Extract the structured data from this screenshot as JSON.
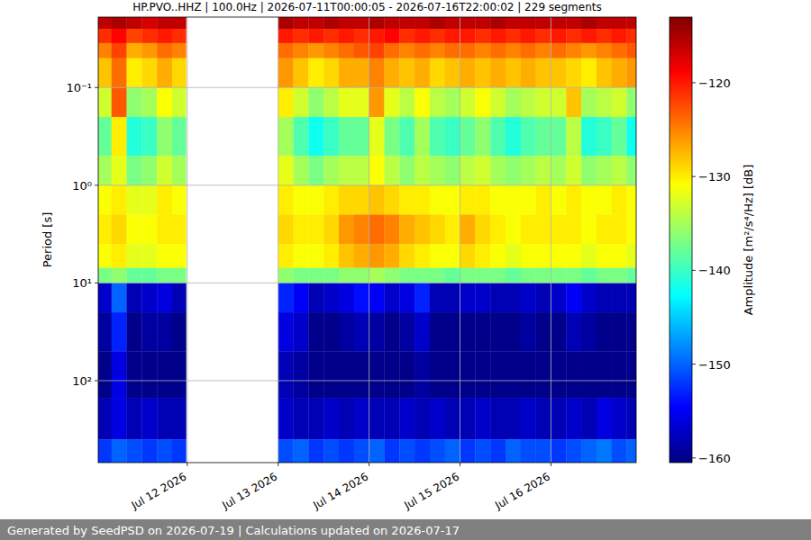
{
  "chart_data": {
    "type": "heatmap",
    "title": "HP.PVO..HHZ | 100.0Hz | 2026-07-11T00:00:05 - 2026-07-16T22:00:02 | 229 segments",
    "y_label": "Period [s]",
    "log": "y",
    "grid": true,
    "xlim": [
      "2026-07-11T00:30",
      "2026-07-16T22:30"
    ],
    "xticks": [
      {
        "value": "2026-07-12T00:00",
        "label": "Jul 12 2026"
      },
      {
        "value": "2026-07-13T00:00",
        "label": "Jul 13 2026"
      },
      {
        "value": "2026-07-14T00:00",
        "label": "Jul 14 2026"
      },
      {
        "value": "2026-07-15T00:00",
        "label": "Jul 15 2026"
      },
      {
        "value": "2026-07-16T00:00",
        "label": "Jul 16 2026"
      }
    ],
    "ylim": [
      0.019,
      690
    ],
    "yticks": [
      {
        "value": 0.1,
        "label": "10⁻¹"
      },
      {
        "value": 1,
        "label": "10⁰"
      },
      {
        "value": 10,
        "label": "10¹"
      },
      {
        "value": 100,
        "label": "10²"
      }
    ],
    "x_bins": [
      "2026-07-11T00:30",
      "2026-07-11T04:00",
      "2026-07-11T08:00",
      "2026-07-11T12:00",
      "2026-07-11T16:00",
      "2026-07-11T20:00",
      "2026-07-11T23:40",
      "2026-07-13T00:00",
      "2026-07-13T04:00",
      "2026-07-13T08:00",
      "2026-07-13T12:00",
      "2026-07-13T16:00",
      "2026-07-13T20:00",
      "2026-07-14T00:00",
      "2026-07-14T04:00",
      "2026-07-14T08:00",
      "2026-07-14T12:00",
      "2026-07-14T16:00",
      "2026-07-14T20:00",
      "2026-07-15T00:00",
      "2026-07-15T04:00",
      "2026-07-15T08:00",
      "2026-07-15T12:00",
      "2026-07-15T16:00",
      "2026-07-15T20:00",
      "2026-07-16T00:00",
      "2026-07-16T04:00",
      "2026-07-16T08:00",
      "2026-07-16T12:00",
      "2026-07-16T16:00",
      "2026-07-16T20:00",
      "2026-07-16T22:30"
    ],
    "y_bins": [
      0.019,
      0.025,
      0.035,
      0.05,
      0.1,
      0.2,
      0.5,
      1,
      2,
      4,
      7,
      10,
      20,
      50,
      150,
      400,
      690
    ],
    "cells": [
      [
        -116,
        -115,
        -116,
        -117,
        -116,
        -116,
        null,
        -115,
        -116,
        -116,
        -115,
        -116,
        -116,
        -115,
        -116,
        -116,
        -116,
        -115,
        -116,
        -116,
        -116,
        -115,
        -116,
        -116,
        -116,
        -116,
        -116,
        -115,
        -116,
        -116,
        -116
      ],
      [
        -121,
        -119,
        -122,
        -121,
        -120,
        -121,
        null,
        -120,
        -121,
        -120,
        -121,
        -120,
        -121,
        -120,
        -119,
        -121,
        -120,
        -121,
        -120,
        -120,
        -121,
        -120,
        -121,
        -120,
        -121,
        -120,
        -121,
        -120,
        -121,
        -120,
        -121
      ],
      [
        -125,
        -122,
        -127,
        -126,
        -124,
        -125,
        null,
        -124,
        -125,
        -126,
        -125,
        -124,
        -123,
        -122,
        -124,
        -125,
        -124,
        -125,
        -124,
        -124,
        -125,
        -124,
        -125,
        -124,
        -125,
        -124,
        -125,
        -126,
        -125,
        -124,
        -123
      ],
      [
        -128,
        -124,
        -130,
        -129,
        -127,
        -129,
        null,
        -126,
        -128,
        -130,
        -129,
        -127,
        -127,
        -125,
        -127,
        -128,
        -127,
        -129,
        -128,
        -127,
        -128,
        -127,
        -128,
        -127,
        -128,
        -128,
        -129,
        -130,
        -128,
        -127,
        -126
      ],
      [
        -133,
        -123,
        -136,
        -135,
        -131,
        -133,
        null,
        -130,
        -133,
        -136,
        -134,
        -132,
        -132,
        -126,
        -132,
        -134,
        -131,
        -134,
        -135,
        -133,
        -131,
        -133,
        -135,
        -134,
        -133,
        -133,
        -128,
        -135,
        -134,
        -133,
        -136
      ],
      [
        -138,
        -130,
        -141,
        -140,
        -136,
        -138,
        null,
        -135,
        -139,
        -142,
        -140,
        -138,
        -138,
        -132,
        -137,
        -139,
        -135,
        -139,
        -140,
        -138,
        -136,
        -139,
        -141,
        -139,
        -138,
        -138,
        -134,
        -141,
        -140,
        -138,
        -142
      ],
      [
        -135,
        -132,
        -137,
        -136,
        -133,
        -135,
        null,
        -132,
        -135,
        -137,
        -135,
        -134,
        -134,
        -131,
        -134,
        -136,
        -134,
        -135,
        -136,
        -134,
        -133,
        -135,
        -136,
        -135,
        -134,
        -135,
        -133,
        -136,
        -135,
        -134,
        -136
      ],
      [
        -131,
        -130,
        -132,
        -132,
        -130,
        -131,
        null,
        -130,
        -131,
        -131,
        -130,
        -129,
        -129,
        -128,
        -129,
        -130,
        -130,
        -131,
        -131,
        -130,
        -130,
        -131,
        -131,
        -131,
        -130,
        -131,
        -130,
        -131,
        -131,
        -130,
        -131
      ],
      [
        -130,
        -129,
        -131,
        -131,
        -130,
        -130,
        null,
        -129,
        -130,
        -130,
        -129,
        -126,
        -125,
        -124,
        -125,
        -127,
        -128,
        -129,
        -130,
        -127,
        -129,
        -130,
        -131,
        -130,
        -130,
        -130,
        -130,
        -131,
        -130,
        -130,
        -131
      ],
      [
        -131,
        -130,
        -132,
        -132,
        -131,
        -131,
        null,
        -130,
        -131,
        -131,
        -130,
        -128,
        -127,
        -126,
        -127,
        -129,
        -130,
        -131,
        -131,
        -129,
        -130,
        -131,
        -132,
        -131,
        -131,
        -131,
        -131,
        -132,
        -131,
        -131,
        -132
      ],
      [
        -137,
        -136,
        -138,
        -138,
        -137,
        -137,
        null,
        -136,
        -137,
        -137,
        -137,
        -136,
        -136,
        -135,
        -136,
        -137,
        -137,
        -137,
        -138,
        -137,
        -137,
        -137,
        -138,
        -137,
        -137,
        -137,
        -137,
        -138,
        -137,
        -137,
        -138
      ],
      [
        -157,
        -150,
        -158,
        -157,
        -156,
        -158,
        null,
        -153,
        -155,
        -158,
        -157,
        -156,
        -154,
        -155,
        -157,
        -156,
        -153,
        -158,
        -158,
        -157,
        -157,
        -158,
        -158,
        -157,
        -158,
        -157,
        -155,
        -157,
        -158,
        -158,
        -158
      ],
      [
        -159,
        -153,
        -160,
        -159,
        -159,
        -160,
        null,
        -156,
        -157,
        -160,
        -160,
        -159,
        -158,
        -159,
        -160,
        -159,
        -157,
        -160,
        -160,
        -160,
        -160,
        -160,
        -160,
        -159,
        -160,
        -160,
        -158,
        -159,
        -160,
        -160,
        -160
      ],
      [
        -160,
        -156,
        -160,
        -160,
        -160,
        -160,
        null,
        -158,
        -159,
        -160,
        -160,
        -160,
        -160,
        -160,
        -160,
        -160,
        -159,
        -160,
        -160,
        -160,
        -160,
        -160,
        -160,
        -160,
        -160,
        -160,
        -160,
        -160,
        -160,
        -160,
        -160
      ],
      [
        -158,
        -156,
        -158,
        -157,
        -158,
        -158,
        null,
        -157,
        -158,
        -158,
        -157,
        -158,
        -157,
        -158,
        -158,
        -157,
        -158,
        -157,
        -158,
        -158,
        -157,
        -158,
        -158,
        -157,
        -158,
        -158,
        -157,
        -158,
        -156,
        -157,
        -158
      ],
      [
        -152,
        -150,
        -151,
        -152,
        -151,
        -152,
        null,
        -151,
        -150,
        -152,
        -151,
        -152,
        -151,
        -150,
        -152,
        -151,
        -152,
        -151,
        -150,
        -152,
        -151,
        -152,
        -150,
        -151,
        -151,
        -152,
        -151,
        -150,
        -149,
        -151,
        -150
      ]
    ],
    "colorbar": {
      "label": "Amplitude [m²/s⁴/Hz] [dB]",
      "range": [
        -160.5,
        -113
      ],
      "ticks": [
        {
          "value": -160,
          "label": "−160"
        },
        {
          "value": -150,
          "label": "−150"
        },
        {
          "value": -140,
          "label": "−140"
        },
        {
          "value": -130,
          "label": "−130"
        },
        {
          "value": -120,
          "label": "−120"
        }
      ]
    }
  },
  "footer": "Generated by SeedPSD on 2026-07-19 | Calculations updated on 2026-07-17"
}
